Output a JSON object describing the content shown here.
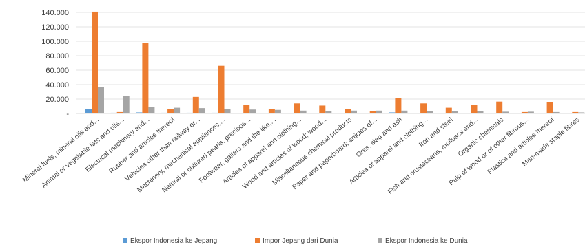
{
  "chart_data": {
    "type": "bar",
    "categories": [
      "Mineral fuels, mineral oils and...",
      "Animal or vegetable fats and oils...",
      "Electrical machinery and...",
      "Rubber and articles thereof",
      "Vehicles other than railway or...",
      "Machinery, mechanical appliances,...",
      "Natural or cultured pearls, precious...",
      "Footwear, gaiters and the like;...",
      "Articles of apparel and clothing...",
      "Wood and articles of wood; wood...",
      "Miscellaneous chemical products",
      "Paper and paperboard; articles of...",
      "Ores, slag and ash",
      "Articles of apparel and clothing...",
      "Iron and steel",
      "Fish and crustaceans, molluscs and...",
      "Organic chemicals",
      "Pulp of wood or of other fibrous...",
      "Plastics and articles thereof",
      "Man-made staple fibres"
    ],
    "series": [
      {
        "name": "Ekspor Indonesia ke Jepang",
        "color": "#5b9bd5",
        "values": [
          6000,
          1000,
          1500,
          1000,
          1000,
          1000,
          800,
          800,
          800,
          700,
          500,
          500,
          1500,
          600,
          500,
          700,
          500,
          500,
          500,
          400
        ]
      },
      {
        "name": "Impor Jepang dari Dunia",
        "color": "#ed7d31",
        "values": [
          141000,
          2000,
          98000,
          6000,
          23000,
          66000,
          12000,
          6000,
          14000,
          11000,
          6500,
          3000,
          21000,
          14000,
          8000,
          12000,
          16500,
          2000,
          16000,
          2000
        ]
      },
      {
        "name": "Ekspor Indonesia ke Dunia",
        "color": "#a5a5a5",
        "values": [
          37000,
          24000,
          9000,
          8000,
          7500,
          6000,
          5500,
          5000,
          4000,
          3500,
          4000,
          4000,
          4000,
          3000,
          3000,
          3500,
          2500,
          2500,
          2000,
          1500
        ]
      }
    ],
    "y_ticks": [
      "140.000",
      "120.000",
      "100.000",
      "80.000",
      "60.000",
      "40.000",
      "20.000",
      "-"
    ],
    "ylim": [
      0,
      140000
    ],
    "grid": true,
    "legend_position": "bottom"
  }
}
